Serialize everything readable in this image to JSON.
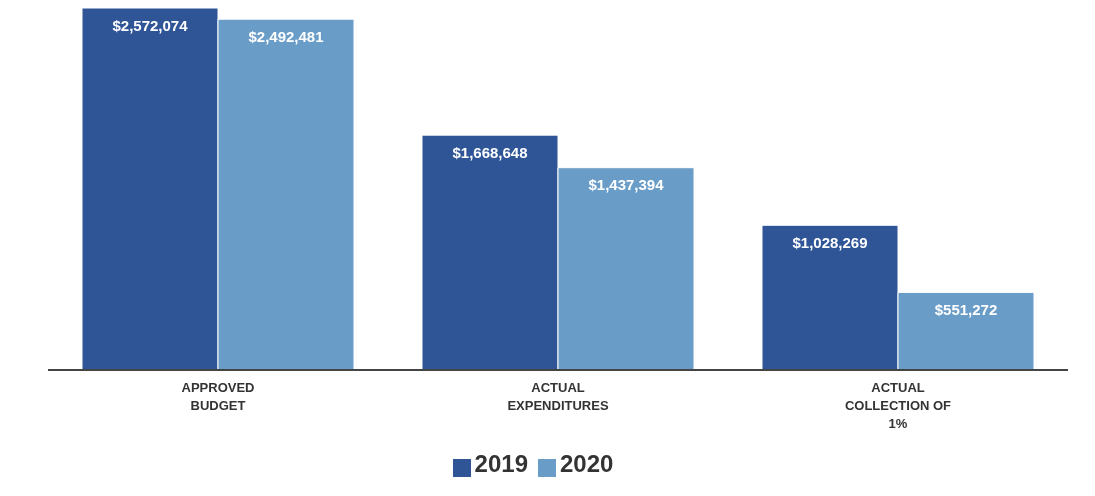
{
  "chart_data": {
    "type": "bar",
    "categories": [
      "APPROVED BUDGET",
      "ACTUAL EXPENDITURES",
      "ACTUAL COLLECTION OF 1%"
    ],
    "series": [
      {
        "name": "2019",
        "color": "#2f5597",
        "values": [
          2572074,
          1668648,
          1028269
        ],
        "value_labels": [
          "$2,572,074",
          "$1,668,648",
          "$1,028,269"
        ]
      },
      {
        "name": "2020",
        "color": "#6a9cc8",
        "values": [
          2492481,
          1437394,
          551272
        ],
        "value_labels": [
          "$2,492,481",
          "$1,437,394",
          "$551,272"
        ]
      }
    ],
    "tick_labels": "x",
    "legend": "bottom"
  }
}
